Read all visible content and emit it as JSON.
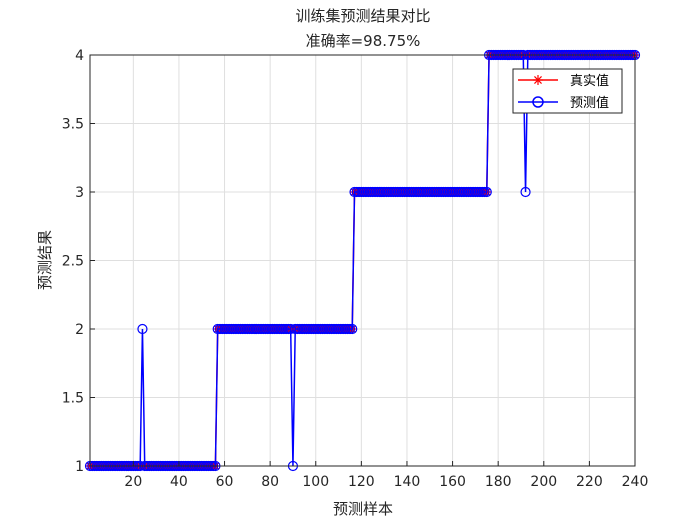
{
  "chart_data": {
    "type": "line",
    "title": "训练集预测结果对比",
    "subtitle": "准确率=98.75%",
    "xlabel": "预测样本",
    "ylabel": "预测结果",
    "xlim": [
      1,
      240
    ],
    "ylim": [
      1,
      4
    ],
    "xticks": [
      20,
      40,
      60,
      80,
      100,
      120,
      140,
      160,
      180,
      200,
      220,
      240
    ],
    "yticks": [
      1,
      1.5,
      2,
      2.5,
      3,
      3.5,
      4
    ],
    "grid": true,
    "legend_position": "top-right",
    "series": [
      {
        "name": "真实值",
        "color": "#ff0000",
        "marker": "asterisk",
        "segments": [
          {
            "x_start": 1,
            "x_end": 56,
            "y": 1
          },
          {
            "x_start": 57,
            "x_end": 116,
            "y": 2
          },
          {
            "x_start": 117,
            "x_end": 175,
            "y": 3
          },
          {
            "x_start": 176,
            "x_end": 240,
            "y": 4
          }
        ]
      },
      {
        "name": "预测值",
        "color": "#0000ff",
        "marker": "circle",
        "segments": [
          {
            "x_start": 1,
            "x_end": 56,
            "y": 1
          },
          {
            "x_start": 57,
            "x_end": 116,
            "y": 2
          },
          {
            "x_start": 117,
            "x_end": 175,
            "y": 3
          },
          {
            "x_start": 176,
            "x_end": 240,
            "y": 4
          }
        ],
        "exceptions": [
          {
            "x": 24,
            "y": 2
          },
          {
            "x": 90,
            "y": 1
          },
          {
            "x": 192,
            "y": 3
          }
        ]
      }
    ]
  }
}
